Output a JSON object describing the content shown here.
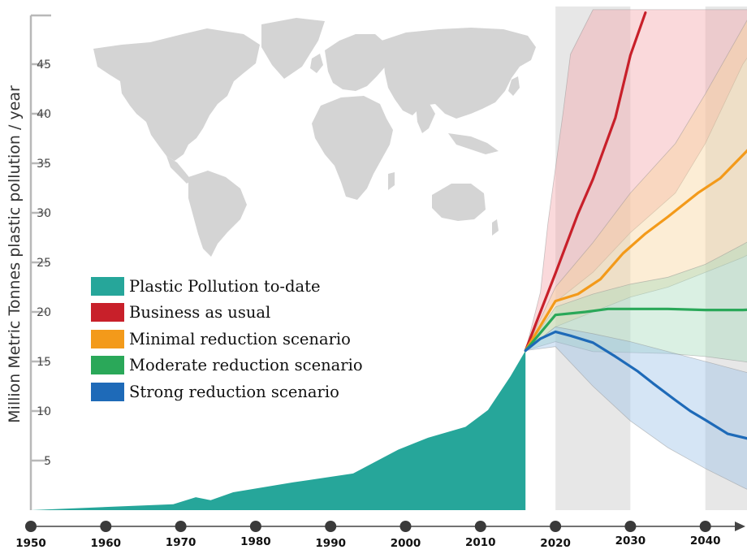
{
  "chart_data": {
    "type": "area",
    "title": "",
    "xlabel": "",
    "ylabel": "Million Metric Tonnes plastic pollution / year",
    "xlim": [
      1950,
      2050
    ],
    "ylim": [
      0,
      50
    ],
    "x_ticks": [
      "1950",
      "1960",
      "1970",
      "1980",
      "1990",
      "2000",
      "2010",
      "2020",
      "2030",
      "2040"
    ],
    "y_ticks": [
      "5",
      "10",
      "15",
      "20",
      "25",
      "30",
      "35",
      "40",
      "45"
    ],
    "legend": {
      "position": "left-center",
      "entries": [
        {
          "label": "Plastic Pollution to-date",
          "color": "#26a69a"
        },
        {
          "label": "Business as usual",
          "color": "#c8202a"
        },
        {
          "label": "Minimal reduction scenario",
          "color": "#f39a1a"
        },
        {
          "label": "Moderate reduction scenario",
          "color": "#2aa859"
        },
        {
          "label": "Strong reduction scenario",
          "color": "#1e6ab8"
        }
      ]
    },
    "history": {
      "name": "Plastic Pollution to-date",
      "color": "#26a69a",
      "x": [
        1950,
        1969,
        1972,
        1974,
        1977,
        1985,
        1993,
        1999,
        2003,
        2008,
        2011,
        2014,
        2016
      ],
      "y": [
        0,
        0.6,
        1.3,
        1.0,
        1.8,
        2.8,
        3.7,
        6.1,
        7.3,
        8.4,
        10.1,
        13.5,
        16.1
      ]
    },
    "scenarios": [
      {
        "name": "Business as usual",
        "color": "#c8202a",
        "band_color": "#f4a4aa",
        "x": [
          2016,
          2018,
          2020,
          2023,
          2025,
          2028,
          2030,
          2032
        ],
        "y": [
          16.1,
          20.0,
          23.9,
          29.9,
          33.4,
          39.6,
          45.9,
          50.2
        ],
        "band_upper_x": [
          2016,
          2018,
          2019,
          2021,
          2022,
          2025,
          2032
        ],
        "band_upper_y": [
          16.1,
          22.0,
          29.0,
          40.0,
          46.0,
          50.5,
          50.5
        ],
        "band_lower_x": [
          2016,
          2018,
          2020,
          2025,
          2030,
          2036,
          2040,
          2045,
          2050
        ],
        "band_lower_y": [
          16.1,
          18.5,
          21.0,
          24.0,
          28.0,
          32.0,
          37.0,
          45.0,
          50.5
        ]
      },
      {
        "name": "Minimal reduction scenario",
        "color": "#f39a1a",
        "band_color": "#f7d39b",
        "x": [
          2016,
          2020,
          2023,
          2026,
          2029,
          2032,
          2035,
          2039,
          2042,
          2046,
          2049,
          2050
        ],
        "y": [
          16.1,
          21.1,
          21.8,
          23.3,
          25.9,
          27.9,
          29.6,
          32.0,
          33.5,
          36.6,
          38.8,
          40.5
        ],
        "band_upper_x": [
          2016,
          2020,
          2025,
          2030,
          2036,
          2040,
          2043,
          2046,
          2050
        ],
        "band_upper_y": [
          16.1,
          22.5,
          27.0,
          32.0,
          37.0,
          42.0,
          46.0,
          50.0,
          50.5
        ],
        "band_lower_x": [
          2016,
          2020,
          2025,
          2030,
          2035,
          2040,
          2045,
          2050
        ],
        "band_lower_y": [
          16.1,
          18.5,
          20.0,
          21.5,
          22.5,
          24.0,
          25.5,
          27.5
        ]
      },
      {
        "name": "Moderate reduction scenario",
        "color": "#2aa859",
        "band_color": "#a8dcbc",
        "x": [
          2016,
          2020,
          2024,
          2027,
          2030,
          2035,
          2040,
          2045,
          2048,
          2050
        ],
        "y": [
          16.1,
          19.7,
          20.0,
          20.3,
          20.3,
          20.3,
          20.2,
          20.2,
          20.3,
          20.6
        ],
        "band_upper_x": [
          2016,
          2020,
          2025,
          2030,
          2035,
          2040,
          2045,
          2050
        ],
        "band_upper_y": [
          16.1,
          20.5,
          21.8,
          22.8,
          23.5,
          24.8,
          26.8,
          29.0
        ],
        "band_lower_x": [
          2016,
          2020,
          2025,
          2030,
          2035,
          2040,
          2045,
          2050
        ],
        "band_lower_y": [
          16.1,
          17.0,
          16.0,
          15.9,
          15.8,
          15.5,
          15.0,
          14.5
        ]
      },
      {
        "name": "Strong reduction scenario",
        "color": "#1e6ab8",
        "band_color": "#9cc0e6",
        "x": [
          2016,
          2018,
          2020,
          2022,
          2025,
          2028,
          2031,
          2033,
          2036,
          2038,
          2040,
          2043,
          2048,
          2050
        ],
        "y": [
          16.1,
          17.3,
          18.0,
          17.6,
          16.9,
          15.5,
          14.0,
          12.8,
          11.1,
          10.0,
          9.1,
          7.7,
          6.8,
          6.2
        ],
        "band_upper_x": [
          2016,
          2020,
          2025,
          2030,
          2035,
          2040,
          2045,
          2050
        ],
        "band_upper_y": [
          16.1,
          18.5,
          17.8,
          17.0,
          16.0,
          15.0,
          14.0,
          13.0
        ],
        "band_lower_x": [
          2016,
          2020,
          2025,
          2030,
          2035,
          2040,
          2045,
          2050
        ],
        "band_lower_y": [
          16.1,
          16.5,
          12.5,
          9.0,
          6.3,
          4.2,
          2.3,
          0.5
        ]
      }
    ],
    "highlighted_decades": [
      [
        2020,
        2030
      ],
      [
        2040,
        2050
      ]
    ],
    "background_map": "world-map",
    "grid": false
  },
  "colors": {
    "axis": "#b8b8b8",
    "tick_dot": "#3a3a3a",
    "decade_band": "#e3e3e3",
    "map_fill": "#d4d4d4"
  }
}
